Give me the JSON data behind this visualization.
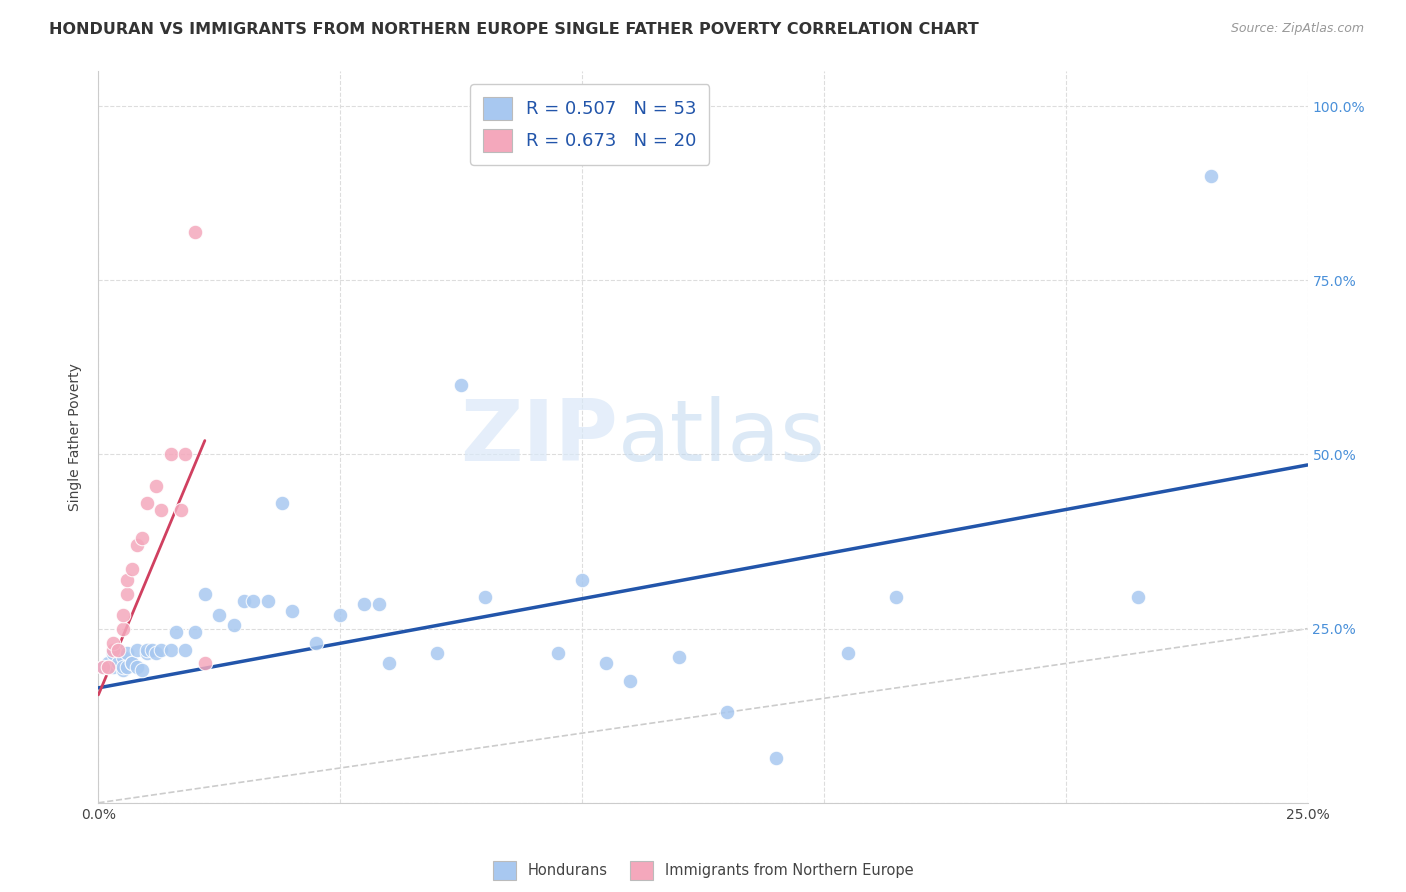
{
  "title": "HONDURAN VS IMMIGRANTS FROM NORTHERN EUROPE SINGLE FATHER POVERTY CORRELATION CHART",
  "source": "Source: ZipAtlas.com",
  "ylabel": "Single Father Poverty",
  "xlim": [
    0.0,
    0.25
  ],
  "ylim": [
    0.0,
    1.05
  ],
  "yticks": [
    0.0,
    0.25,
    0.5,
    0.75,
    1.0
  ],
  "xticks": [
    0.0,
    0.05,
    0.1,
    0.15,
    0.2,
    0.25
  ],
  "xtick_labels": [
    "0.0%",
    "",
    "",
    "",
    "",
    "25.0%"
  ],
  "ytick_labels_right": [
    "",
    "25.0%",
    "50.0%",
    "75.0%",
    "100.0%"
  ],
  "blue_R": 0.507,
  "blue_N": 53,
  "pink_R": 0.673,
  "pink_N": 20,
  "blue_color": "#A8C8F0",
  "pink_color": "#F4A8BC",
  "blue_line_color": "#2255AA",
  "pink_line_color": "#D04060",
  "diagonal_color": "#CCCCCC",
  "grid_color": "#DDDDDD",
  "background_color": "#FFFFFF",
  "title_fontsize": 11.5,
  "axis_label_fontsize": 10,
  "tick_fontsize": 10,
  "legend_fontsize": 13,
  "source_fontsize": 9,
  "blue_scatter_x": [
    0.001,
    0.002,
    0.002,
    0.003,
    0.003,
    0.004,
    0.004,
    0.005,
    0.005,
    0.005,
    0.006,
    0.006,
    0.007,
    0.007,
    0.008,
    0.008,
    0.009,
    0.01,
    0.01,
    0.011,
    0.012,
    0.013,
    0.015,
    0.016,
    0.018,
    0.02,
    0.022,
    0.025,
    0.028,
    0.03,
    0.032,
    0.035,
    0.038,
    0.04,
    0.045,
    0.05,
    0.055,
    0.058,
    0.06,
    0.07,
    0.075,
    0.08,
    0.095,
    0.1,
    0.105,
    0.11,
    0.12,
    0.13,
    0.14,
    0.155,
    0.165,
    0.215,
    0.23
  ],
  "blue_scatter_y": [
    0.195,
    0.2,
    0.195,
    0.215,
    0.195,
    0.2,
    0.22,
    0.19,
    0.21,
    0.195,
    0.215,
    0.195,
    0.2,
    0.2,
    0.22,
    0.195,
    0.19,
    0.215,
    0.22,
    0.22,
    0.215,
    0.22,
    0.22,
    0.245,
    0.22,
    0.245,
    0.3,
    0.27,
    0.255,
    0.29,
    0.29,
    0.29,
    0.43,
    0.275,
    0.23,
    0.27,
    0.285,
    0.285,
    0.2,
    0.215,
    0.6,
    0.295,
    0.215,
    0.32,
    0.2,
    0.175,
    0.21,
    0.13,
    0.065,
    0.215,
    0.295,
    0.295,
    0.9
  ],
  "pink_scatter_x": [
    0.001,
    0.002,
    0.003,
    0.003,
    0.004,
    0.005,
    0.005,
    0.006,
    0.006,
    0.007,
    0.008,
    0.009,
    0.01,
    0.012,
    0.013,
    0.015,
    0.017,
    0.018,
    0.02,
    0.022
  ],
  "pink_scatter_y": [
    0.195,
    0.195,
    0.22,
    0.23,
    0.22,
    0.25,
    0.27,
    0.3,
    0.32,
    0.335,
    0.37,
    0.38,
    0.43,
    0.455,
    0.42,
    0.5,
    0.42,
    0.5,
    0.82,
    0.2
  ],
  "blue_line_x": [
    0.0,
    0.25
  ],
  "blue_line_y": [
    0.165,
    0.485
  ],
  "pink_line_x": [
    0.0,
    0.022
  ],
  "pink_line_y": [
    0.155,
    0.52
  ],
  "diag_line_x": [
    0.0,
    0.25
  ],
  "diag_line_y": [
    0.0,
    0.25
  ]
}
